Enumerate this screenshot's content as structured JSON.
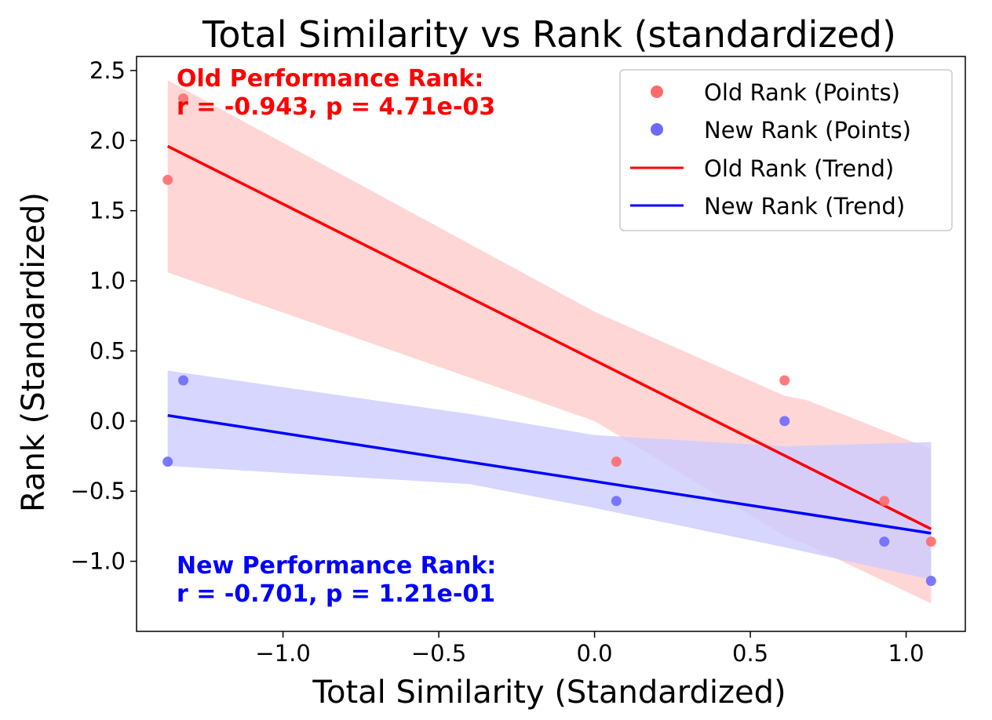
{
  "chart_data": {
    "type": "scatter",
    "title": "Total Similarity vs Rank (standardized)",
    "xlabel": "Total Similarity (Standardized)",
    "ylabel": "Rank (Standardized)",
    "xlim": [
      -1.47,
      1.19
    ],
    "ylim": [
      -1.5,
      2.6
    ],
    "xticks": [
      -1.0,
      -0.5,
      0.0,
      0.5,
      1.0
    ],
    "xtick_labels": [
      "−1.0",
      "−0.5",
      "0.0",
      "0.5",
      "1.0"
    ],
    "yticks": [
      -1.0,
      -0.5,
      0.0,
      0.5,
      1.0,
      1.5,
      2.0,
      2.5
    ],
    "ytick_labels": [
      "−1.0",
      "−0.5",
      "0.0",
      "0.5",
      "1.0",
      "1.5",
      "2.0",
      "2.5"
    ],
    "grid": false,
    "legend_position": "top-right",
    "series": [
      {
        "name": "Old Rank (Points)",
        "kind": "points",
        "color": "#ff6b6b",
        "x": [
          -1.37,
          -1.32,
          0.07,
          0.61,
          0.93,
          1.08
        ],
        "y": [
          1.72,
          2.3,
          -0.29,
          0.29,
          -0.57,
          -0.86
        ]
      },
      {
        "name": "New Rank (Points)",
        "kind": "points",
        "color": "#6b6bff",
        "x": [
          -1.37,
          -1.32,
          0.07,
          0.61,
          0.93,
          1.08
        ],
        "y": [
          -0.29,
          0.29,
          -0.57,
          0.0,
          -0.86,
          -1.14
        ]
      },
      {
        "name": "Old Rank (Trend)",
        "kind": "line",
        "color": "#ff0000",
        "x": [
          -1.37,
          1.08
        ],
        "y": [
          1.96,
          -0.77
        ],
        "ci_color": "#ffcccc",
        "ci_x": [
          -1.37,
          0.0,
          0.61,
          0.68,
          1.08
        ],
        "ci_upper": [
          2.43,
          0.78,
          0.18,
          0.15,
          -0.2
        ],
        "ci_lower": [
          1.06,
          0.0,
          -0.82,
          -0.88,
          -1.3
        ]
      },
      {
        "name": "New Rank (Trend)",
        "kind": "line",
        "color": "#0000ff",
        "x": [
          -1.37,
          1.08
        ],
        "y": [
          0.04,
          -0.8
        ],
        "ci_color": "#ccccff",
        "ci_x": [
          -1.37,
          -0.4,
          0.0,
          0.61,
          1.08
        ],
        "ci_upper": [
          0.36,
          0.05,
          -0.1,
          -0.18,
          -0.15
        ],
        "ci_lower": [
          -0.32,
          -0.45,
          -0.62,
          -0.9,
          -1.13
        ]
      }
    ],
    "annotations": [
      {
        "line1": "Old Performance Rank:",
        "line2": "r = -0.943, p = 4.71e-03",
        "color": "#ff0000",
        "position": "top-left"
      },
      {
        "line1": "New Performance Rank:",
        "line2": "r = -0.701, p = 1.21e-01",
        "color": "#0000ff",
        "position": "bottom-left"
      }
    ]
  }
}
